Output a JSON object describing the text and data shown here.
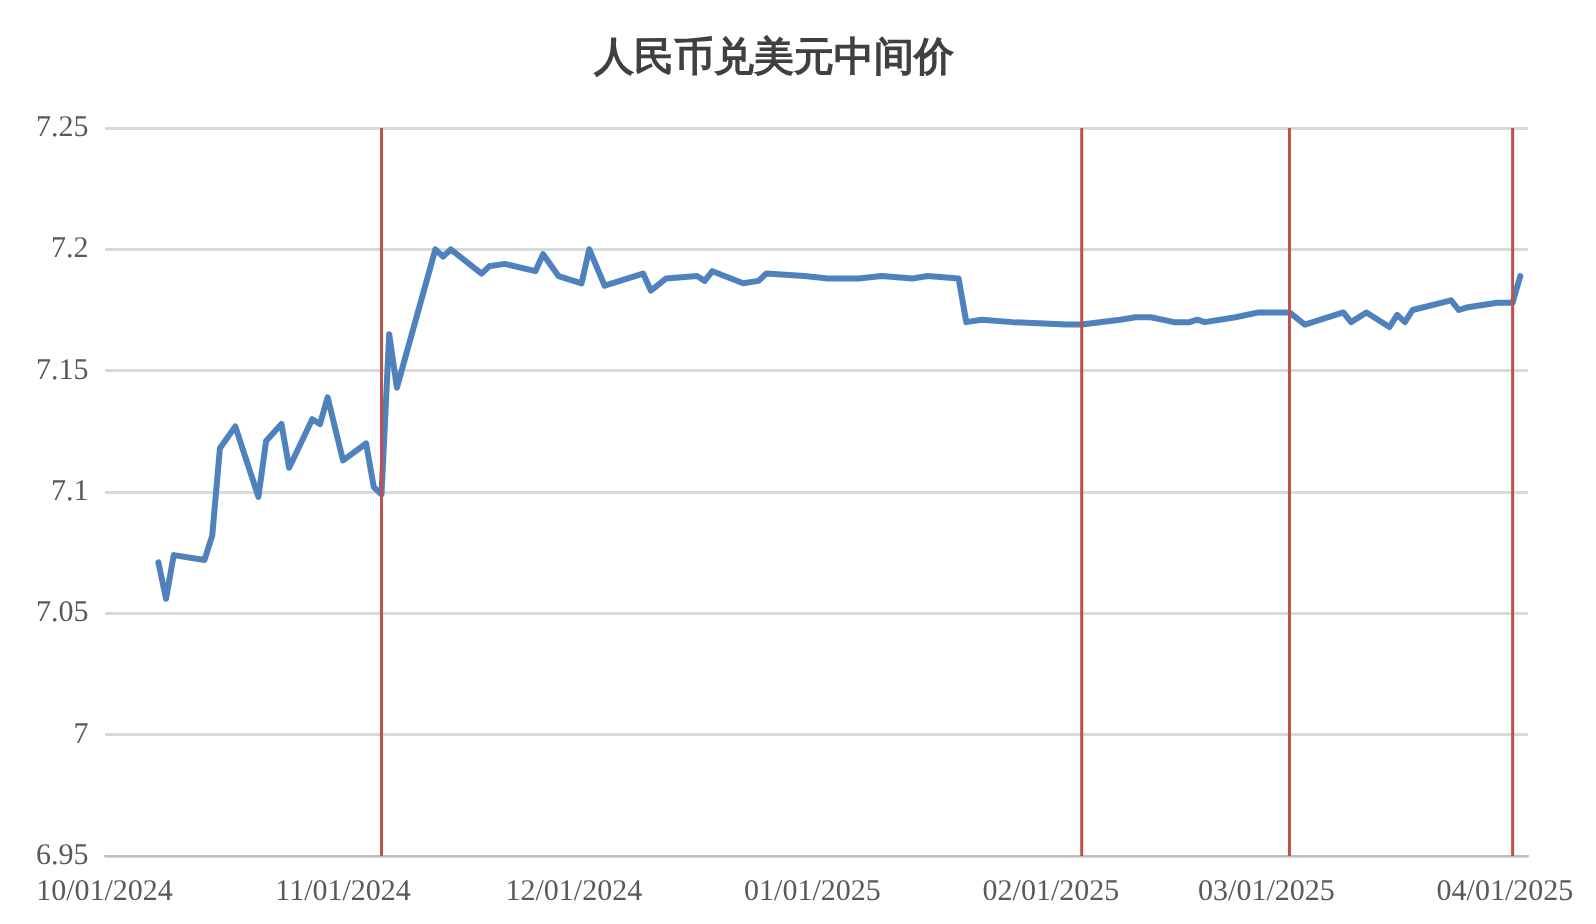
{
  "chart_data": {
    "type": "line",
    "title": "人民币兑美元中间价",
    "x": [
      "2024-10-08",
      "2024-10-09",
      "2024-10-10",
      "2024-10-14",
      "2024-10-15",
      "2024-10-16",
      "2024-10-18",
      "2024-10-21",
      "2024-10-22",
      "2024-10-24",
      "2024-10-25",
      "2024-10-28",
      "2024-10-29",
      "2024-10-30",
      "2024-11-01",
      "2024-11-04",
      "2024-11-05",
      "2024-11-06",
      "2024-11-07",
      "2024-11-08",
      "2024-11-13",
      "2024-11-14",
      "2024-11-15",
      "2024-11-19",
      "2024-11-20",
      "2024-11-22",
      "2024-11-26",
      "2024-11-27",
      "2024-11-29",
      "2024-12-02",
      "2024-12-03",
      "2024-12-05",
      "2024-12-10",
      "2024-12-11",
      "2024-12-13",
      "2024-12-17",
      "2024-12-18",
      "2024-12-19",
      "2024-12-23",
      "2024-12-25",
      "2024-12-26",
      "2024-12-31",
      "2025-01-03",
      "2025-01-07",
      "2025-01-10",
      "2025-01-14",
      "2025-01-16",
      "2025-01-20",
      "2025-01-21",
      "2025-01-23",
      "2025-01-27",
      "2025-02-03",
      "2025-02-05",
      "2025-02-10",
      "2025-02-12",
      "2025-02-14",
      "2025-02-17",
      "2025-02-19",
      "2025-02-20",
      "2025-02-21",
      "2025-02-25",
      "2025-02-28",
      "2025-03-03",
      "2025-03-04",
      "2025-03-06",
      "2025-03-11",
      "2025-03-12",
      "2025-03-14",
      "2025-03-17",
      "2025-03-18",
      "2025-03-19",
      "2025-03-20",
      "2025-03-25",
      "2025-03-26",
      "2025-03-27",
      "2025-03-31",
      "2025-04-02",
      "2025-04-03"
    ],
    "series": [
      {
        "color": "#4f81bd",
        "values": [
          7.071,
          7.056,
          7.074,
          7.072,
          7.082,
          7.118,
          7.127,
          7.098,
          7.121,
          7.128,
          7.11,
          7.13,
          7.128,
          7.139,
          7.113,
          7.12,
          7.102,
          7.099,
          7.165,
          7.143,
          7.2,
          7.197,
          7.2,
          7.19,
          7.193,
          7.194,
          7.191,
          7.198,
          7.189,
          7.186,
          7.2,
          7.185,
          7.19,
          7.183,
          7.188,
          7.189,
          7.187,
          7.191,
          7.186,
          7.187,
          7.19,
          7.189,
          7.188,
          7.188,
          7.189,
          7.188,
          7.189,
          7.188,
          7.17,
          7.171,
          7.17,
          7.169,
          7.169,
          7.171,
          7.172,
          7.172,
          7.17,
          7.17,
          7.171,
          7.17,
          7.172,
          7.174,
          7.174,
          7.174,
          7.169,
          7.174,
          7.17,
          7.174,
          7.168,
          7.173,
          7.17,
          7.175,
          7.179,
          7.175,
          7.176,
          7.178,
          7.178,
          7.189
        ]
      }
    ],
    "xlim": [
      "2024-10-01",
      "2025-04-04"
    ],
    "xticks": [
      {
        "value": "2024-10-01",
        "label": "10/01/2024"
      },
      {
        "value": "2024-11-01",
        "label": "11/01/2024"
      },
      {
        "value": "2024-12-01",
        "label": "12/01/2024"
      },
      {
        "value": "2025-01-01",
        "label": "01/01/2025"
      },
      {
        "value": "2025-02-01",
        "label": "02/01/2025"
      },
      {
        "value": "2025-03-01",
        "label": "03/01/2025"
      },
      {
        "value": "2025-04-01",
        "label": "04/01/2025"
      }
    ],
    "ylim": [
      6.95,
      7.25
    ],
    "yticks": [
      6.95,
      7,
      7.05,
      7.1,
      7.15,
      7.2,
      7.25
    ],
    "grid": "y",
    "marker": "none",
    "line_style": "solid",
    "legend": false,
    "ref_lines": [
      {
        "axis": "x",
        "value": "2024-11-06",
        "color": "#c0504d"
      },
      {
        "axis": "x",
        "value": "2025-02-05",
        "color": "#c0504d"
      },
      {
        "axis": "x",
        "value": "2025-03-04",
        "color": "#c0504d"
      },
      {
        "axis": "x",
        "value": "2025-04-02",
        "color": "#c0504d"
      }
    ]
  }
}
